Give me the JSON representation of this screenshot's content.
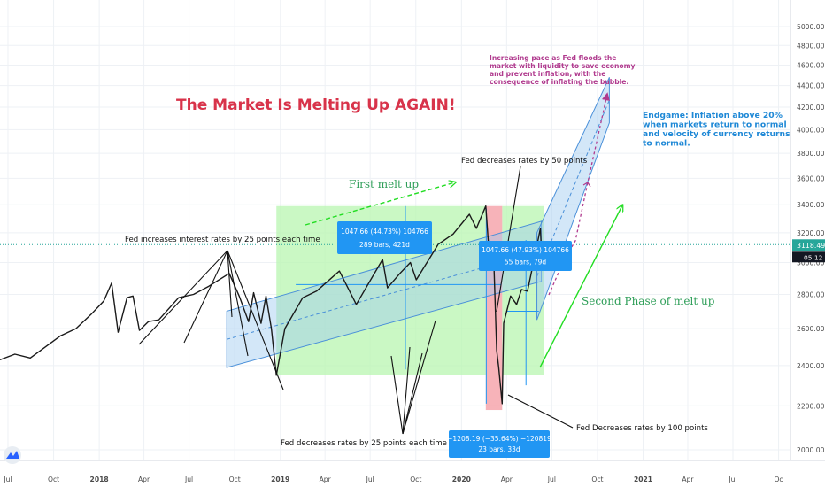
{
  "chart_data": {
    "type": "line",
    "title": "The Market Is Melting Up AGAIN!",
    "y_axis": {
      "ticks": [
        2000,
        2200,
        2400,
        2600,
        2800,
        3000,
        3200,
        3400,
        3600,
        3800,
        4000,
        4200,
        4400,
        4600,
        4800,
        5000
      ],
      "tick_labels": [
        "2000.00",
        "2200.00",
        "2400.00",
        "2600.00",
        "2800.00",
        "3000.00",
        "3200.00",
        "3400.00",
        "3600.00",
        "3800.00",
        "4000.00",
        "4200.00",
        "4400.00",
        "4600.00",
        "4800.00",
        "5000.00"
      ],
      "range": [
        1900,
        5150
      ],
      "scale": "log",
      "side": "right"
    },
    "x_axis": {
      "range": [
        "2017-06-15",
        "2021-10-25"
      ],
      "ticks": [
        {
          "date": "2017-07-01",
          "label": "Jul"
        },
        {
          "date": "2017-10-01",
          "label": "Oct"
        },
        {
          "date": "2018-01-01",
          "label": "2018"
        },
        {
          "date": "2018-04-01",
          "label": "Apr"
        },
        {
          "date": "2018-07-01",
          "label": "Jul"
        },
        {
          "date": "2018-10-01",
          "label": "Oct"
        },
        {
          "date": "2019-01-01",
          "label": "2019"
        },
        {
          "date": "2019-04-01",
          "label": "Apr"
        },
        {
          "date": "2019-07-01",
          "label": "Jul"
        },
        {
          "date": "2019-10-01",
          "label": "Oct"
        },
        {
          "date": "2020-01-01",
          "label": "2020"
        },
        {
          "date": "2020-04-01",
          "label": "Apr"
        },
        {
          "date": "2020-07-01",
          "label": "Jul"
        },
        {
          "date": "2020-10-01",
          "label": "Oct"
        },
        {
          "date": "2021-01-01",
          "label": "2021"
        },
        {
          "date": "2021-04-01",
          "label": "Apr"
        },
        {
          "date": "2021-07-01",
          "label": "Jul"
        },
        {
          "date": "2021-10-01",
          "label": "Oc"
        }
      ]
    },
    "series": [
      {
        "color": "#1a1a1a",
        "points": [
          [
            "2017-06-15",
            2430
          ],
          [
            "2017-07-15",
            2460
          ],
          [
            "2017-08-15",
            2440
          ],
          [
            "2017-09-15",
            2500
          ],
          [
            "2017-10-15",
            2560
          ],
          [
            "2017-11-15",
            2600
          ],
          [
            "2017-12-15",
            2680
          ],
          [
            "2018-01-10",
            2760
          ],
          [
            "2018-01-26",
            2870
          ],
          [
            "2018-02-08",
            2580
          ],
          [
            "2018-02-26",
            2780
          ],
          [
            "2018-03-10",
            2790
          ],
          [
            "2018-03-23",
            2590
          ],
          [
            "2018-04-10",
            2640
          ],
          [
            "2018-05-01",
            2650
          ],
          [
            "2018-06-10",
            2780
          ],
          [
            "2018-07-10",
            2800
          ],
          [
            "2018-08-10",
            2850
          ],
          [
            "2018-09-20",
            2930
          ],
          [
            "2018-10-10",
            2790
          ],
          [
            "2018-10-29",
            2640
          ],
          [
            "2018-11-08",
            2810
          ],
          [
            "2018-11-23",
            2630
          ],
          [
            "2018-12-03",
            2790
          ],
          [
            "2018-12-14",
            2600
          ],
          [
            "2018-12-24",
            2350
          ],
          [
            "2019-01-10",
            2600
          ],
          [
            "2019-02-15",
            2780
          ],
          [
            "2019-03-15",
            2820
          ],
          [
            "2019-04-30",
            2945
          ],
          [
            "2019-06-03",
            2740
          ],
          [
            "2019-07-26",
            3020
          ],
          [
            "2019-08-05",
            2840
          ],
          [
            "2019-08-30",
            2930
          ],
          [
            "2019-09-20",
            3000
          ],
          [
            "2019-10-02",
            2890
          ],
          [
            "2019-11-15",
            3120
          ],
          [
            "2019-12-15",
            3190
          ],
          [
            "2020-01-17",
            3330
          ],
          [
            "2020-01-31",
            3230
          ],
          [
            "2020-02-19",
            3390
          ],
          [
            "2020-02-28",
            2950
          ],
          [
            "2020-03-05",
            3130
          ],
          [
            "2020-03-12",
            2480
          ],
          [
            "2020-03-16",
            2390
          ],
          [
            "2020-03-23",
            2210
          ],
          [
            "2020-03-26",
            2630
          ],
          [
            "2020-04-09",
            2790
          ],
          [
            "2020-04-21",
            2740
          ],
          [
            "2020-05-01",
            2830
          ],
          [
            "2020-05-13",
            2820
          ],
          [
            "2020-05-27",
            3030
          ],
          [
            "2020-06-08",
            3230
          ],
          [
            "2020-06-11",
            3000
          ],
          [
            "2020-06-15",
            3100
          ]
        ]
      }
    ],
    "current_price": {
      "label": "3118.49",
      "value": 3118.49,
      "countdown": "05:12"
    },
    "annotations": {
      "rate_hikes": "Fed increases interest rates by 25 points each time",
      "rate_cuts_25": "Fed decreases rates by 25 points each time",
      "rate_cut_50": "Fed decreases rates by 50 points",
      "rate_cut_100": "Fed Decreases rates by 100 points",
      "first_melt_up": "First melt up",
      "second_phase": "Second Phase of melt up",
      "increasing_pace": [
        "Increasing pace as Fed floods the",
        "market with liquidity to save economy",
        "and prevent inflation, with the",
        "consequence of inflating the bubble."
      ],
      "endgame": [
        "Endgame: Inflation above 20%",
        "when markets return to normal",
        "and velocity of currency returns",
        "to normal."
      ]
    },
    "measure_boxes": [
      {
        "line1": "1047.66 (44.73%) 104766",
        "line2": "289 bars, 421d"
      },
      {
        "line1": "1047.66 (47.93%) 104766",
        "line2": "55 bars, 79d"
      },
      {
        "line1": "−1208.19 (−35.64%) −120819",
        "line2": "23 bars, 33d"
      }
    ],
    "colors": {
      "title": "#d8334a",
      "green_text": "#2e9e58",
      "green_arrow": "#22dd22",
      "purple": "#b03a8e",
      "blue_text": "#1e88d6",
      "measure_blue": "#2196f3",
      "channel_fill": "#9ec9f0",
      "up_zone": "#b8f5b0",
      "down_zone": "#f5a0a8",
      "price_line": "#26a69a"
    }
  }
}
